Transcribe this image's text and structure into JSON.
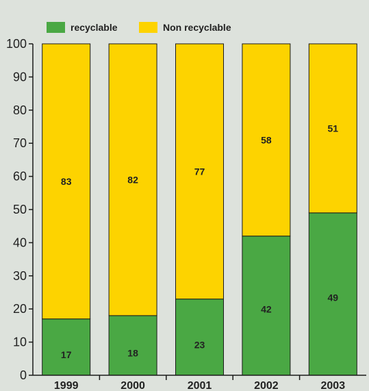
{
  "chart_data": {
    "type": "bar",
    "stacked": true,
    "percent": true,
    "categories": [
      "1999",
      "2000",
      "2001",
      "2002",
      "2003"
    ],
    "series": [
      {
        "name": "recyclable",
        "color": "#4aa844",
        "values": [
          17,
          18,
          23,
          42,
          49
        ]
      },
      {
        "name": "Non recyclable",
        "color": "#fdd300",
        "values": [
          83,
          82,
          77,
          58,
          51
        ]
      }
    ],
    "yticks": [
      "0",
      "10",
      "20",
      "30",
      "40",
      "50",
      "60",
      "70",
      "80",
      "90",
      "100"
    ],
    "ylim": [
      0,
      100
    ],
    "title": "",
    "xlabel": "",
    "ylabel": "",
    "legend": "top-left",
    "grid": false
  }
}
